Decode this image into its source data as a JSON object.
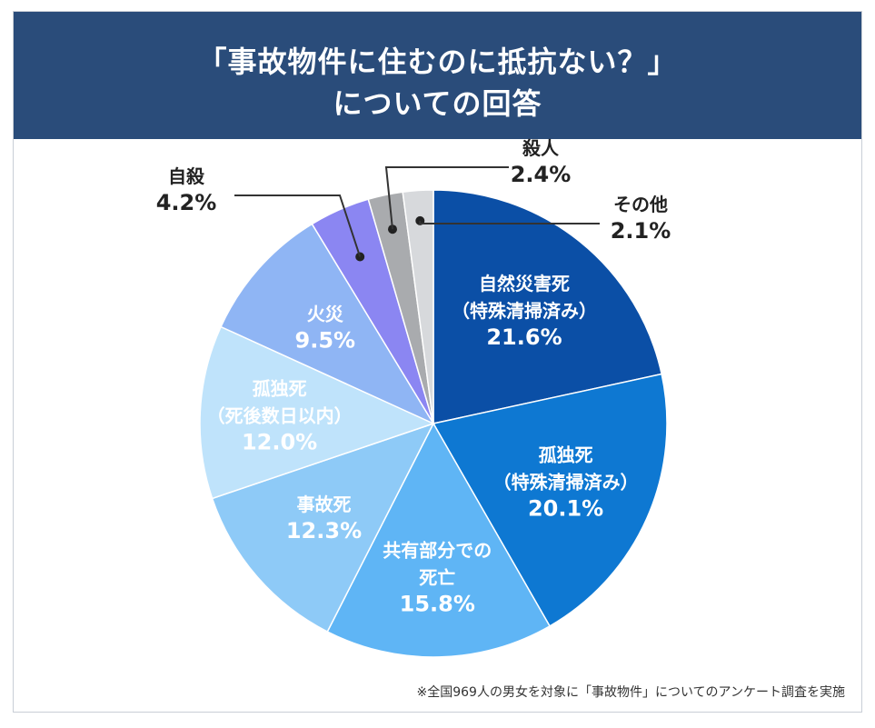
{
  "title": {
    "line1": "「事故物件に住むのに抵抗ない？」",
    "line2": "についての回答"
  },
  "colors": {
    "header_bg": "#2a4c7a",
    "slices": [
      "#0b4fa6",
      "#0e78d2",
      "#5fb5f5",
      "#8ecaf7",
      "#bfe3fb",
      "#8fb5f4",
      "#8b86f2",
      "#a9abae",
      "#d7d9dc"
    ],
    "leader": "#333333"
  },
  "chart_data": {
    "type": "pie",
    "start": "12 o'clock",
    "direction": "clockwise",
    "slices": [
      {
        "label_lines": [
          "自然災害死",
          "（特殊清掃済み）"
        ],
        "value": 21.6,
        "value_text": "21.6%",
        "label_placement": "inside",
        "text_color": "#ffffff"
      },
      {
        "label_lines": [
          "孤独死",
          "（特殊清掃済み）"
        ],
        "value": 20.1,
        "value_text": "20.1%",
        "label_placement": "inside",
        "text_color": "#ffffff"
      },
      {
        "label_lines": [
          "共有部分での",
          "死亡"
        ],
        "value": 15.8,
        "value_text": "15.8%",
        "label_placement": "inside",
        "text_color": "#ffffff"
      },
      {
        "label_lines": [
          "事故死"
        ],
        "value": 12.3,
        "value_text": "12.3%",
        "label_placement": "inside",
        "text_color": "#ffffff"
      },
      {
        "label_lines": [
          "孤独死",
          "（死後数日以内）"
        ],
        "value": 12.0,
        "value_text": "12.0%",
        "label_placement": "inside",
        "text_color": "#ffffff"
      },
      {
        "label_lines": [
          "火災"
        ],
        "value": 9.5,
        "value_text": "9.5%",
        "label_placement": "inside",
        "text_color": "#ffffff"
      },
      {
        "label_lines": [
          "自殺"
        ],
        "value": 4.2,
        "value_text": "4.2%",
        "label_placement": "outside",
        "text_color": "#222222"
      },
      {
        "label_lines": [
          "殺人"
        ],
        "value": 2.4,
        "value_text": "2.4%",
        "label_placement": "outside",
        "text_color": "#222222"
      },
      {
        "label_lines": [
          "その他"
        ],
        "value": 2.1,
        "value_text": "2.1%",
        "label_placement": "outside",
        "text_color": "#222222"
      }
    ]
  },
  "footnote": "※全国969人の男女を対象に「事故物件」についてのアンケート調査を実施"
}
